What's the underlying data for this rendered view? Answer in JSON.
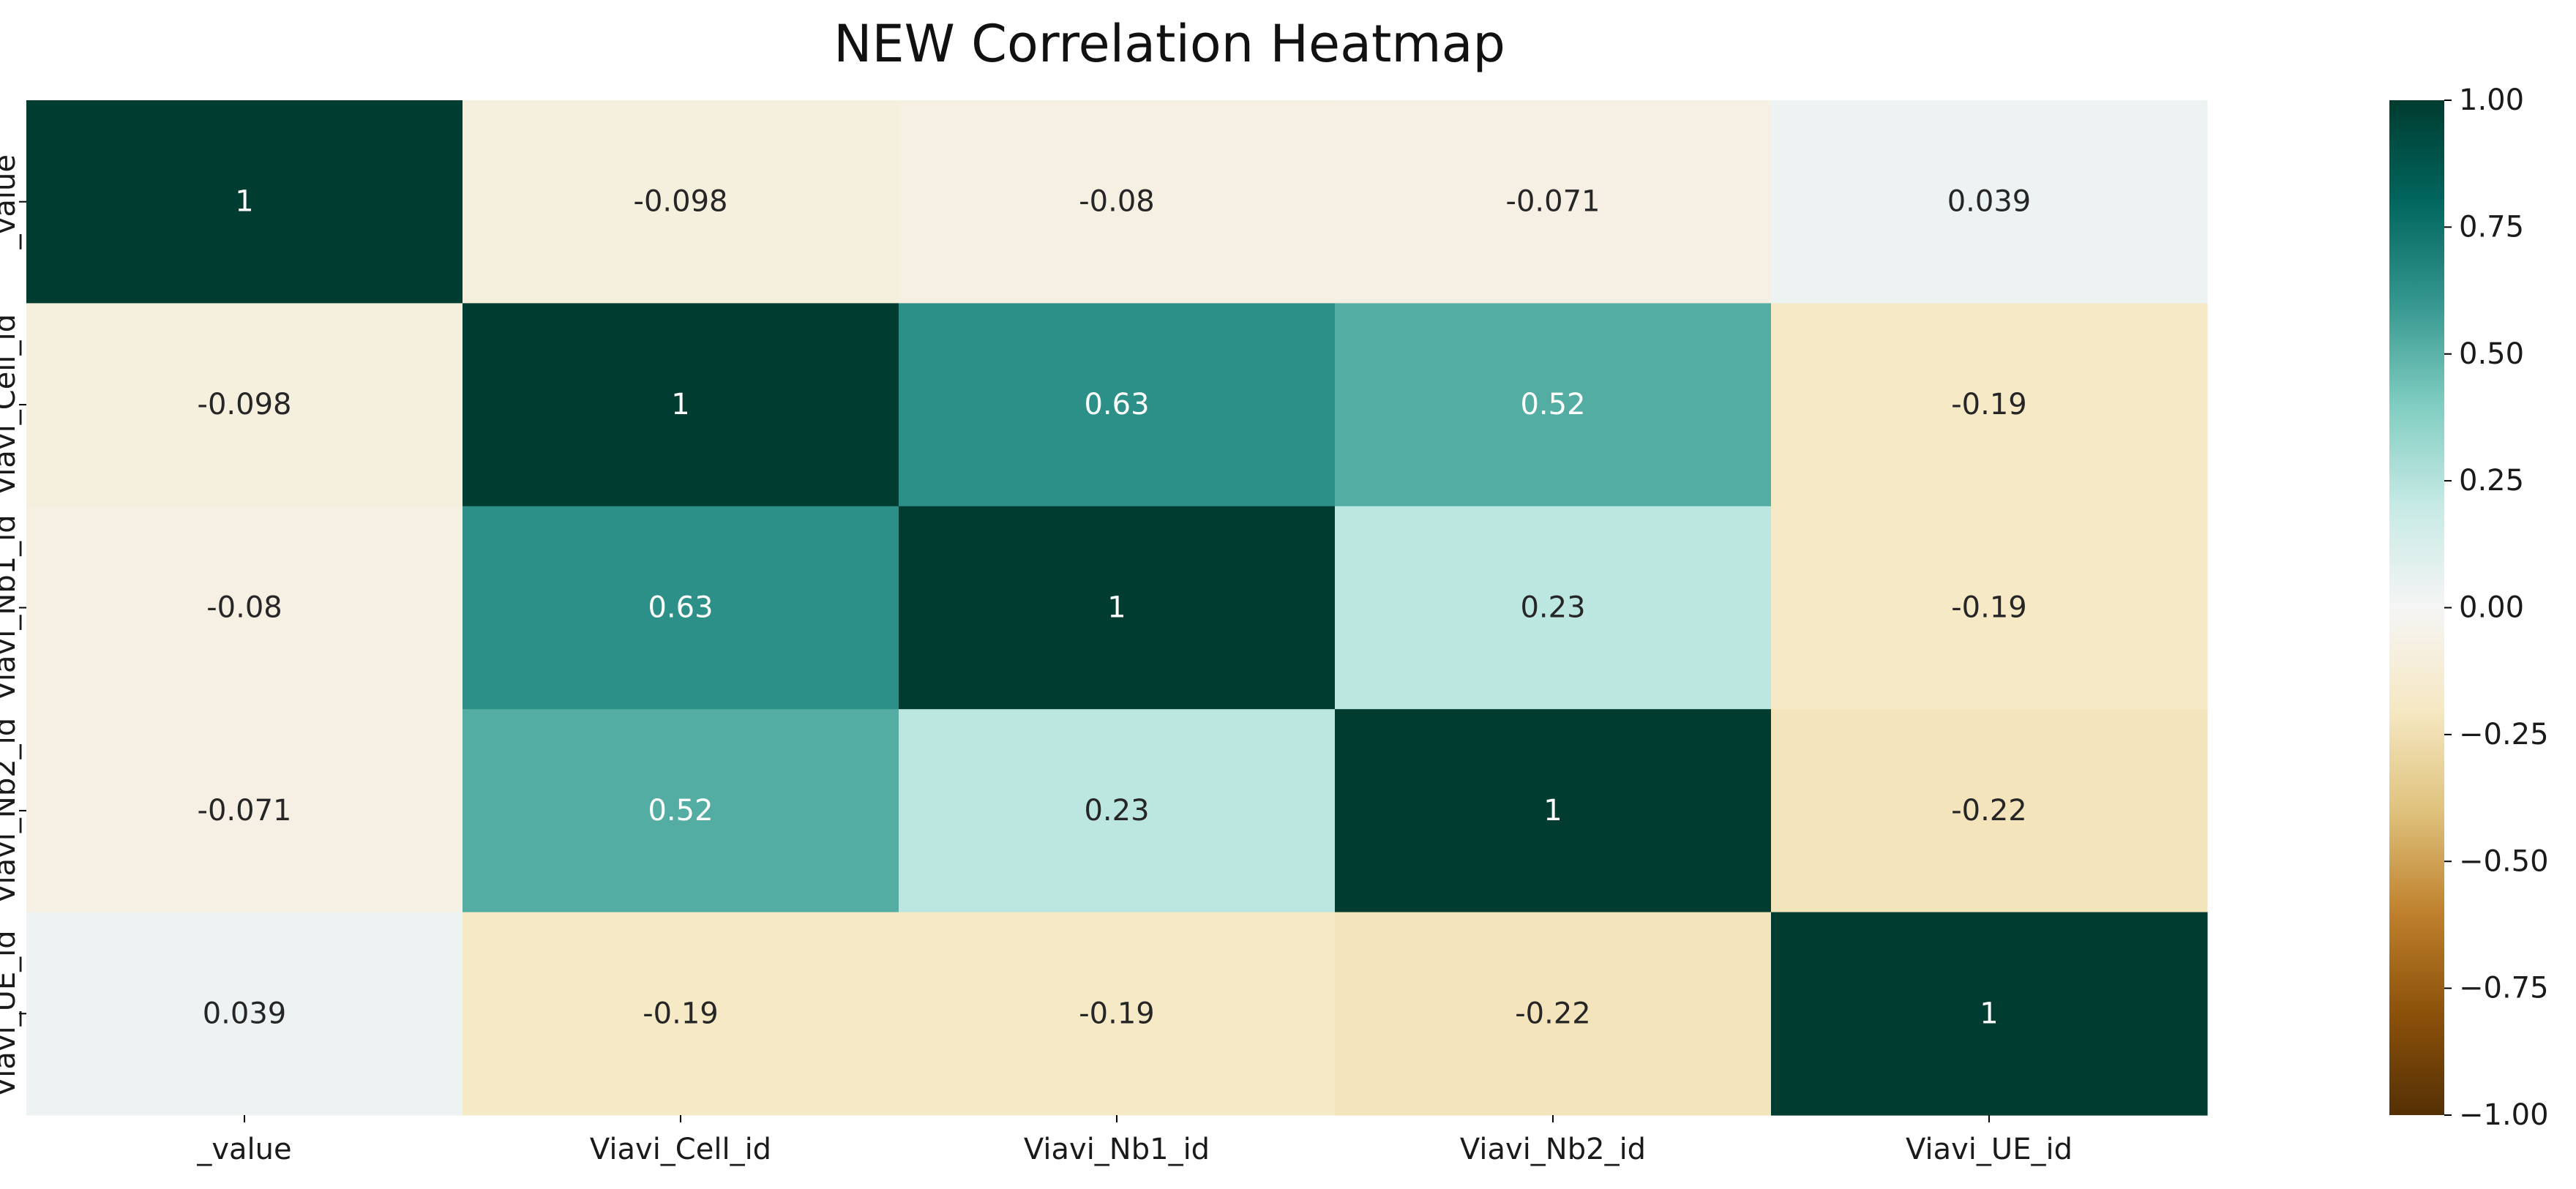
{
  "chart_data": {
    "type": "heatmap",
    "title": "NEW Correlation Heatmap",
    "x_labels": [
      "_value",
      "Viavi_Cell_id",
      "Viavi_Nb1_id",
      "Viavi_Nb2_id",
      "Viavi_UE_id"
    ],
    "y_labels": [
      "_value",
      "Viavi_Cell_id",
      "Viavi_Nb1_id",
      "Viavi_Nb2_id",
      "Viavi_UE_id"
    ],
    "values": [
      [
        1,
        -0.098,
        -0.08,
        -0.071,
        0.039
      ],
      [
        -0.098,
        1,
        0.63,
        0.52,
        -0.19
      ],
      [
        -0.08,
        0.63,
        1,
        0.23,
        -0.19
      ],
      [
        -0.071,
        0.52,
        0.23,
        1,
        -0.22
      ],
      [
        0.039,
        -0.19,
        -0.19,
        -0.22,
        1
      ]
    ],
    "annotations": [
      [
        "1",
        "-0.098",
        "-0.08",
        "-0.071",
        "0.039"
      ],
      [
        "-0.098",
        "1",
        "0.63",
        "0.52",
        "-0.19"
      ],
      [
        "-0.08",
        "0.63",
        "1",
        "0.23",
        "-0.19"
      ],
      [
        "-0.071",
        "0.52",
        "0.23",
        "1",
        "-0.22"
      ],
      [
        "0.039",
        "-0.19",
        "-0.19",
        "-0.22",
        "1"
      ]
    ],
    "colormap": "BrBG",
    "vmin": -1.0,
    "vmax": 1.0,
    "colorbar": {
      "position": "right",
      "ticks": [
        "1.00",
        "0.75",
        "0.50",
        "0.25",
        "0.00",
        "−0.25",
        "−0.50",
        "−0.75",
        "−1.00"
      ],
      "tick_values": [
        1.0,
        0.75,
        0.5,
        0.25,
        0.0,
        -0.25,
        -0.5,
        -0.75,
        -1.0
      ]
    },
    "grid": false
  },
  "colors": {
    "colormap_stops": [
      "#543005",
      "#8c510a",
      "#bf812d",
      "#dfc27d",
      "#f6e8c3",
      "#f5f5f5",
      "#c7eae5",
      "#80cdc1",
      "#35978f",
      "#01665e",
      "#003c30"
    ],
    "text_dark": "#262626",
    "text_light": "#ffffff"
  }
}
